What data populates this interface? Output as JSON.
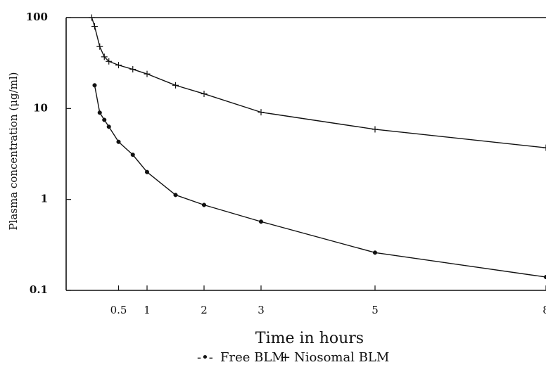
{
  "chart_data": {
    "type": "line",
    "title": "",
    "xlabel": "Time in hours",
    "ylabel": "Plasma concentration (μg/ml)",
    "y_scale": "log",
    "xlim": [
      0,
      8
    ],
    "ylim": [
      0.1,
      100
    ],
    "x_ticks": [
      0.5,
      1,
      2,
      3,
      5,
      8
    ],
    "x_tick_labels": [
      "0.5",
      "1",
      "2",
      "3",
      "5",
      "8"
    ],
    "y_ticks": [
      0.1,
      1,
      10,
      100
    ],
    "y_tick_labels": [
      "0.1",
      "1",
      "10",
      "100"
    ],
    "grid": false,
    "legend_position": "bottom",
    "legend_text": {
      "free_symbol": "-•-",
      "free_label": "Free BLM",
      "nio_symbol": "+",
      "nio_label": "Niosomal BLM"
    },
    "series": [
      {
        "name": "Free BLM",
        "marker": "dot",
        "points": [
          [
            0.08,
            18
          ],
          [
            0.17,
            9
          ],
          [
            0.25,
            7.5
          ],
          [
            0.33,
            6.3
          ],
          [
            0.5,
            4.3
          ],
          [
            0.75,
            3.1
          ],
          [
            1,
            2.0
          ],
          [
            1.5,
            1.12
          ],
          [
            2,
            0.87
          ],
          [
            3,
            0.57
          ],
          [
            5,
            0.26
          ],
          [
            8,
            0.14
          ]
        ]
      },
      {
        "name": "Niosomal BLM",
        "marker": "plus",
        "points": [
          [
            0.03,
            100
          ],
          [
            0.08,
            80
          ],
          [
            0.17,
            48
          ],
          [
            0.25,
            37
          ],
          [
            0.33,
            33
          ],
          [
            0.5,
            30
          ],
          [
            0.75,
            27
          ],
          [
            1,
            24
          ],
          [
            1.5,
            18
          ],
          [
            2,
            14.5
          ],
          [
            3,
            9.1
          ],
          [
            5,
            5.9
          ],
          [
            8,
            3.7
          ]
        ]
      }
    ]
  }
}
